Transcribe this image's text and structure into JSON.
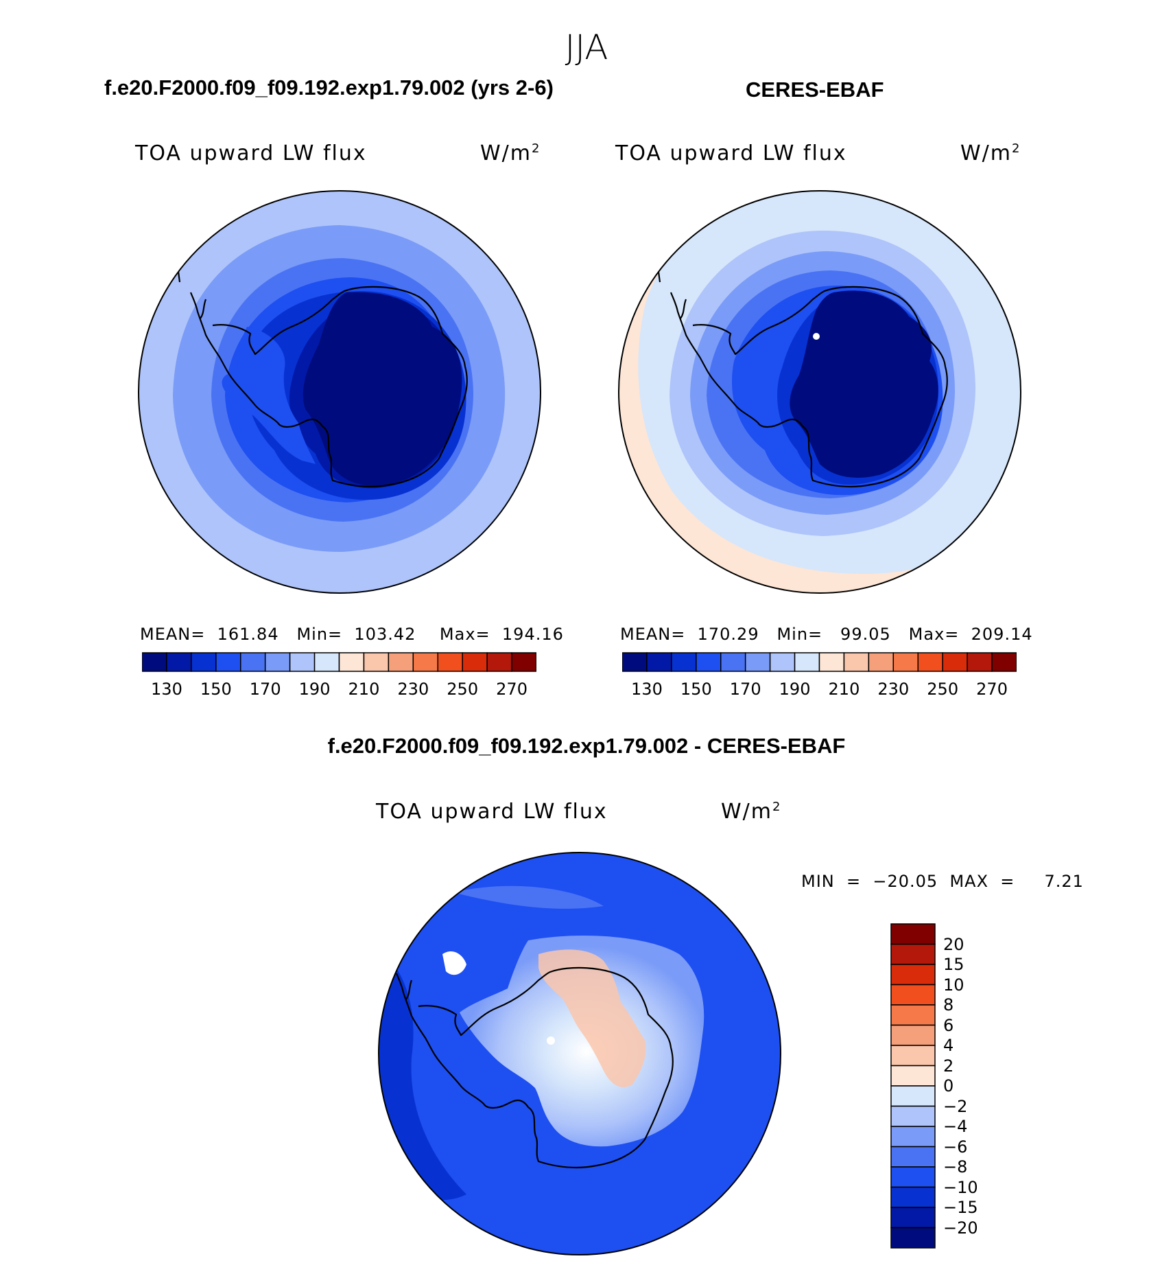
{
  "figure": {
    "season": "JJA",
    "left_title": "f.e20.F2000.f09_f09.192.exp1.79.002 (yrs 2-6)",
    "right_title": "CERES-EBAF",
    "diff_title": "f.e20.F2000.f09_f09.192.exp1.79.002 - CERES-EBAF"
  },
  "panels": {
    "model": {
      "variable": "TOA upward LW flux",
      "units_base": "W/m",
      "units_exp": "2",
      "stats": "MEAN=  161.84   Min=  103.42    Max=  194.16"
    },
    "obs": {
      "variable": "TOA upward LW flux",
      "units_base": "W/m",
      "units_exp": "2",
      "stats": "MEAN=  170.29   Min=   99.05   Max=  209.14"
    },
    "diff": {
      "variable": "TOA upward LW flux",
      "units_base": "W/m",
      "units_exp": "2",
      "stats": "MIN  =  −20.05  MAX  =     7.21"
    }
  },
  "colorbars": {
    "abs_colors": [
      "#000c7d",
      "#0219a8",
      "#0732d1",
      "#1e4ff0",
      "#4a73f4",
      "#7a9bf7",
      "#aec4fa",
      "#d6e6fb",
      "#fde6d6",
      "#fac6ac",
      "#f5a07a",
      "#f67a49",
      "#f24f1f",
      "#d92c0b",
      "#b3180a",
      "#800000"
    ],
    "abs_ticks": [
      "130",
      "150",
      "170",
      "190",
      "210",
      "230",
      "250",
      "270"
    ],
    "diff_colors": [
      "#000c7d",
      "#0219a8",
      "#0732d1",
      "#1e4ff0",
      "#4a73f4",
      "#7a9bf7",
      "#aec4fa",
      "#d6e6fb",
      "#fde6d6",
      "#fac6ac",
      "#f5a07a",
      "#f67a49",
      "#f24f1f",
      "#d92c0b",
      "#b3180a",
      "#800000"
    ],
    "diff_ticks": [
      "−20",
      "−15",
      "−10",
      "−8",
      "−6",
      "−4",
      "−2",
      "0",
      "2",
      "4",
      "6",
      "8",
      "10",
      "15",
      "20"
    ]
  },
  "map_colors": {
    "outline": "#000000",
    "pole_marker": "#ffffff"
  }
}
